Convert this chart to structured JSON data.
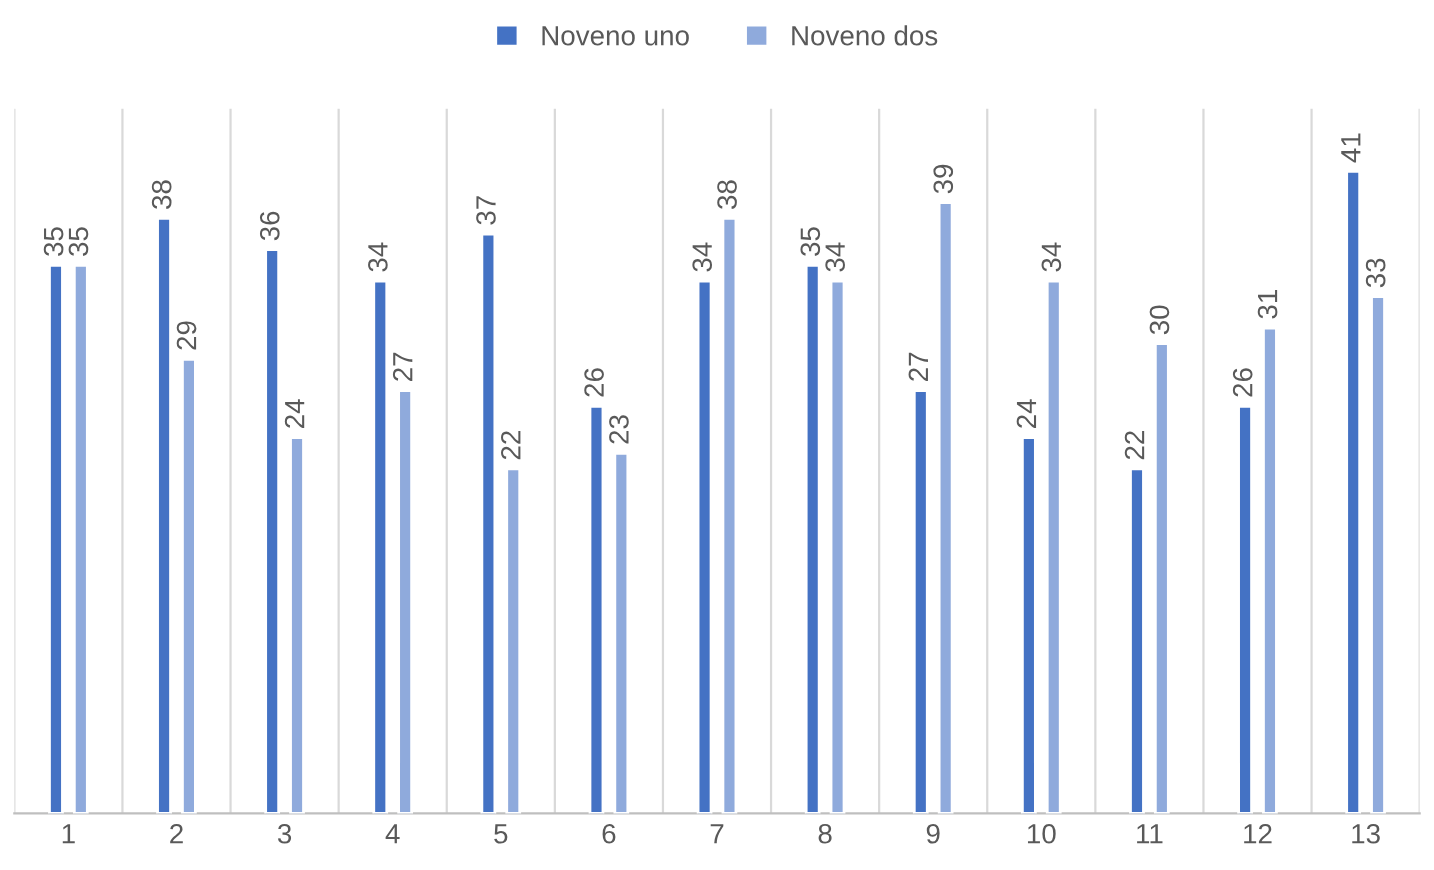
{
  "chart_data": {
    "type": "bar",
    "categories": [
      "1",
      "2",
      "3",
      "4",
      "5",
      "6",
      "7",
      "8",
      "9",
      "10",
      "11",
      "12",
      "13"
    ],
    "series": [
      {
        "name": "Noveno uno",
        "color": "#4472c4",
        "values": [
          35,
          38,
          36,
          34,
          37,
          26,
          34,
          35,
          27,
          24,
          22,
          26,
          41
        ]
      },
      {
        "name": "Noveno dos",
        "color": "#8faadc",
        "values": [
          35,
          29,
          24,
          27,
          22,
          23,
          38,
          34,
          39,
          34,
          30,
          31,
          33
        ]
      }
    ],
    "ylim": [
      0,
      45
    ],
    "data_labels": true,
    "grid": "x",
    "legend": "top",
    "tick_labels": "x"
  }
}
